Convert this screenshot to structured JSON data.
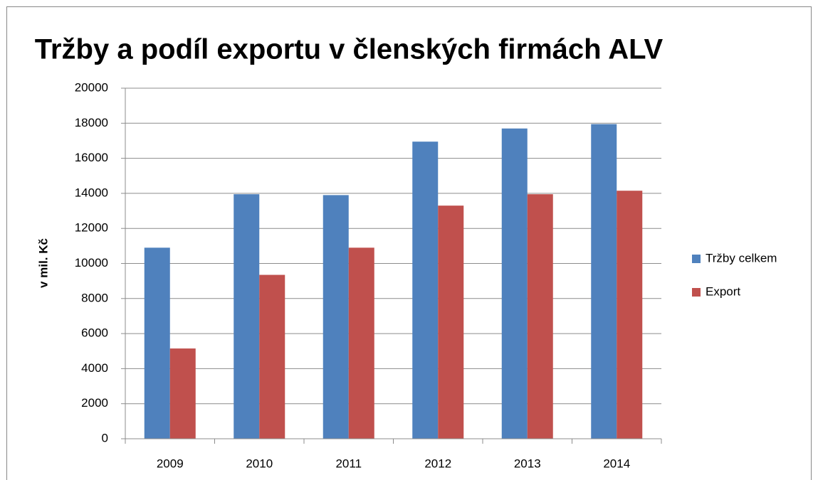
{
  "chart_data": {
    "type": "bar",
    "title": "Tržby a podíl exportu v členských firmách ALV",
    "ylabel": "v mil. Kč",
    "categories": [
      "2009",
      "2010",
      "2011",
      "2012",
      "2013",
      "2014"
    ],
    "series": [
      {
        "name": "Tržby celkem",
        "color": "#4f81bd",
        "values": [
          10900,
          13950,
          13900,
          16950,
          17700,
          17950
        ]
      },
      {
        "name": "Export",
        "color": "#c0504d",
        "values": [
          5150,
          9350,
          10900,
          13300,
          13950,
          14150
        ]
      }
    ],
    "ylim": [
      0,
      20000
    ],
    "yticks": [
      0,
      2000,
      4000,
      6000,
      8000,
      10000,
      12000,
      14000,
      16000,
      18000,
      20000
    ],
    "grid": true,
    "legend": "right"
  }
}
